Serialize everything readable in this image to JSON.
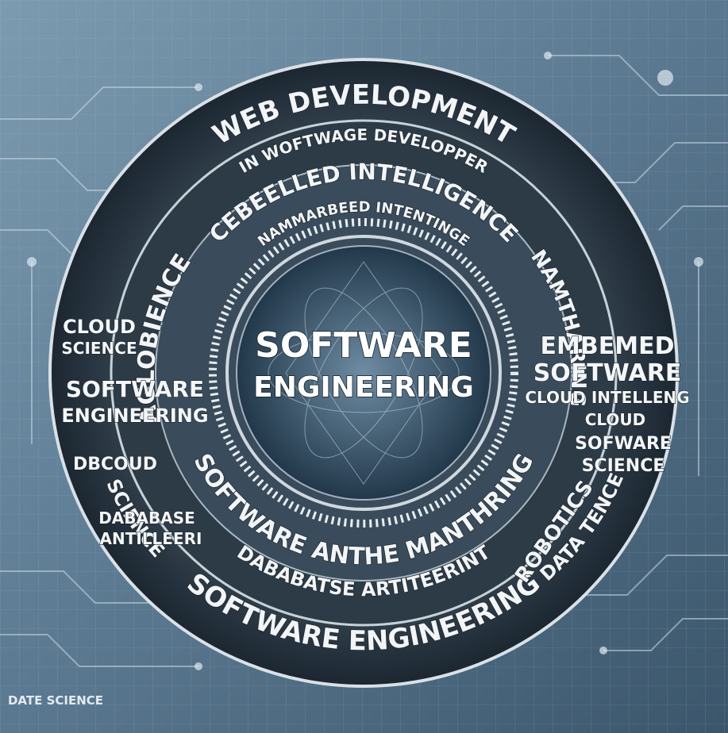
{
  "center_title": [
    "SOFTWARE",
    "ENGINEERING"
  ],
  "ring_labels": {
    "top": "WEB DEVELOPMENT",
    "top_sub": "IN WOFTWAGE DEVELOPPER",
    "inner_top": "CEBEELLED INTELLIGENCE",
    "inner_top_sub": "NAMMARBEED INTENTINGE",
    "left_inner": "AGLOBIENCE",
    "right_inner": "NAMTHARING",
    "inner_bottom": "SOFTWARE ANTHE MANTHRING",
    "lower": "DABABATSE ARTITEERINT",
    "bottom": "SOFTWARE ENGINEERING",
    "bottom_left": "SCIENCE",
    "bottom_right": "DATA TENCE",
    "robotics": "ROBOTICS"
  },
  "side_labels": {
    "left_1": [
      "CLOUD",
      "SCIENCE"
    ],
    "left_2": [
      "SOFTWARE",
      "ENGINEERING"
    ],
    "left_3": "DBCOUD",
    "left_4": [
      "DABABASE",
      "ANTILLEERI"
    ],
    "right_1": [
      "EMBEMED",
      "SOFTWARE"
    ],
    "right_2": "CLOUD INTELLENG",
    "right_3": "CLOUD",
    "right_4": [
      "SOFWARE",
      "SCIENCE"
    ]
  },
  "corner_label": "DATE SCIENCE"
}
